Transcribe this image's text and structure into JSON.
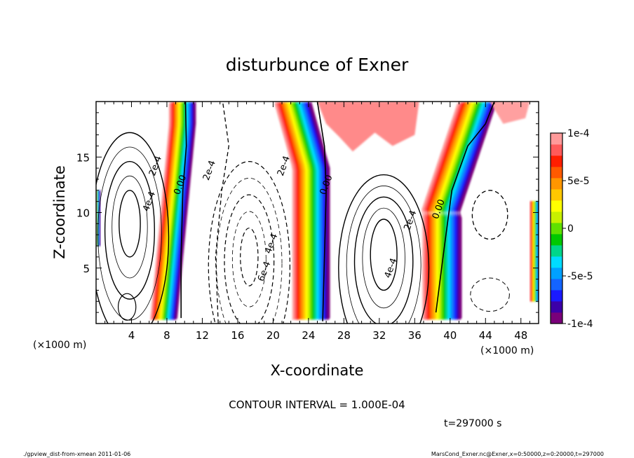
{
  "chart_data": {
    "type": "heatmap",
    "title": "disturbunce of Exner",
    "xlabel": "X-coordinate",
    "ylabel": "Z-coordinate",
    "x_unit_left": "(×1000 m)",
    "x_unit_right": "(×1000 m)",
    "xlim": [
      0,
      50
    ],
    "ylim": [
      0,
      20
    ],
    "x_ticks": [
      4,
      8,
      12,
      16,
      20,
      24,
      28,
      32,
      36,
      40,
      44,
      48
    ],
    "y_ticks": [
      5,
      10,
      15
    ],
    "colorbar": {
      "range": [
        -0.0001,
        0.0001
      ],
      "tick_values": [
        0.0001,
        5e-05,
        0,
        -5e-05,
        -0.0001
      ],
      "tick_labels": [
        "1e-4",
        "5e-5",
        "0",
        "-5e-5",
        "-1e-4"
      ],
      "colors": [
        "#7a007a",
        "#3c00a8",
        "#1a1aff",
        "#1464ff",
        "#00a0ff",
        "#00dcff",
        "#00d68a",
        "#00c800",
        "#60e000",
        "#c8f000",
        "#ffff00",
        "#ffc800",
        "#ff9600",
        "#ff5a00",
        "#ff1e00",
        "#ff5a5a",
        "#ff9a9a"
      ]
    },
    "contour_labels": [
      {
        "text": "2e-4",
        "x": 6.7,
        "y": 14.2,
        "style": "solid"
      },
      {
        "text": "4e-4",
        "x": 6.0,
        "y": 11.0,
        "style": "solid"
      },
      {
        "text": "0.00",
        "x": 9.5,
        "y": 12.5,
        "style": "zero"
      },
      {
        "text": "2e-4",
        "x": 12.8,
        "y": 13.8,
        "style": "dashed"
      },
      {
        "text": "2e-4",
        "x": 21.2,
        "y": 14.2,
        "style": "dashed"
      },
      {
        "text": "4e-4",
        "x": 19.8,
        "y": 7.2,
        "style": "dashed"
      },
      {
        "text": "6e-4",
        "x": 19.0,
        "y": 4.7,
        "style": "dashed"
      },
      {
        "text": "0.00",
        "x": 26.0,
        "y": 12.5,
        "style": "zero"
      },
      {
        "text": "2e-4",
        "x": 35.5,
        "y": 9.3,
        "style": "solid"
      },
      {
        "text": "4e-4",
        "x": 33.3,
        "y": 5.0,
        "style": "solid"
      },
      {
        "text": "0.00",
        "x": 38.7,
        "y": 10.3,
        "style": "zero"
      }
    ],
    "contour_interval_label": "CONTOUR INTERVAL = 1.000E-04",
    "time_label": "t=297000 s"
  },
  "footer": {
    "left": "./gpview_dist-from-xmean  2011-01-06",
    "right": "MarsCond_Exner.nc@Exner,x=0:50000,z=0:20000,t=297000"
  }
}
